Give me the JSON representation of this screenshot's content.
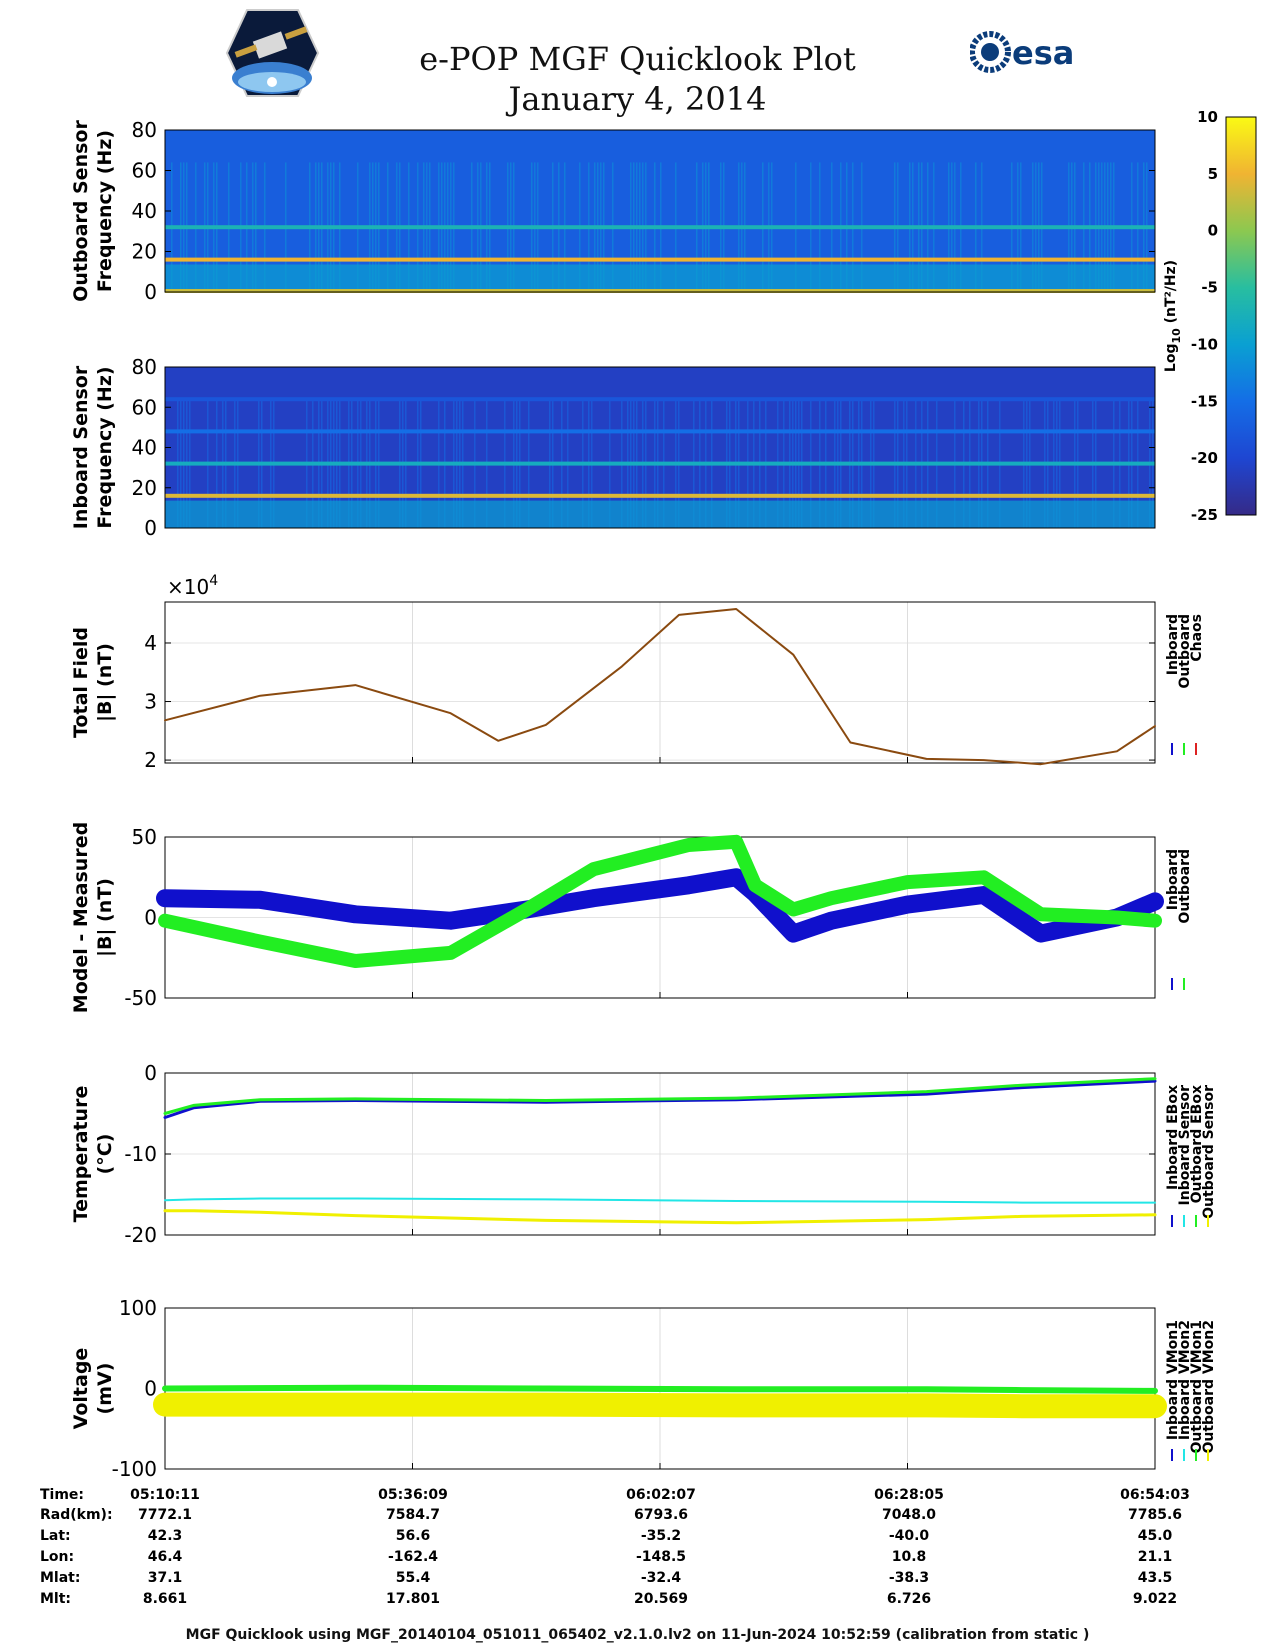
{
  "title": "e-POP MGF Quicklook Plot",
  "subtitle": "January 4, 2014",
  "footer": "MGF Quicklook using MGF_20140104_051011_065402_v2.1.0.lv2 on 11-Jun-2024 10:52:59 (calibration from static )",
  "logos": {
    "left": "e-POP CASSIOPE mission patch",
    "right_text": "esa"
  },
  "colors": {
    "inboard": "#1010cc",
    "outboard": "#22ee22",
    "chaos": "#dd2222",
    "inboard_sensor": "#22e6e6",
    "outboard_sensor": "#f0f000",
    "field_line": "#8a4a10"
  },
  "colorbar": {
    "label": "Log10 (nT²/Hz)",
    "label_main": "Log",
    "label_sub": "10",
    "label_rest": " (nT²/Hz)",
    "ticks": [
      10,
      5,
      0,
      -5,
      -10,
      -15,
      -20,
      -25
    ],
    "range": [
      -25,
      10
    ]
  },
  "chart_data": [
    {
      "type": "heatmap",
      "ylabel_line1": "Outboard Sensor",
      "ylabel_line2": "Frequency (Hz)",
      "ylim": [
        0,
        80
      ],
      "yticks": [
        0,
        20,
        40,
        60,
        80
      ],
      "bands": [
        {
          "freq_hz": 16,
          "log_power": 5
        },
        {
          "freq_hz": 32,
          "log_power": -7
        },
        {
          "freq_hz": 0.5,
          "log_power": 3
        }
      ],
      "background_log_power": -17
    },
    {
      "type": "heatmap",
      "ylabel_line1": "Inboard Sensor",
      "ylabel_line2": "Frequency (Hz)",
      "ylim": [
        0,
        80
      ],
      "yticks": [
        0,
        20,
        40,
        60,
        80
      ],
      "bands": [
        {
          "freq_hz": 16,
          "log_power": 4
        },
        {
          "freq_hz": 32,
          "log_power": -8
        },
        {
          "freq_hz": 48,
          "log_power": -15
        },
        {
          "freq_hz": 64,
          "log_power": -18
        }
      ],
      "background_log_power": -21
    },
    {
      "type": "line",
      "ylabel_line1": "Total Field",
      "ylabel_line2": "|B| (nT)",
      "exponent_label": "×10",
      "exponent_power": "4",
      "ylim": [
        1.95,
        4.7
      ],
      "yticks": [
        2,
        3,
        4
      ],
      "legend": [
        "Inboard",
        "Outboard",
        "Chaos"
      ],
      "x_minutes": [
        0,
        10,
        20,
        30,
        35,
        40,
        48,
        54,
        60,
        66,
        72,
        80,
        86,
        92,
        100,
        104
      ],
      "series": [
        {
          "name": "Chaos",
          "values": [
            2.68,
            3.1,
            3.28,
            2.8,
            2.33,
            2.6,
            3.6,
            4.48,
            4.58,
            3.8,
            2.3,
            2.02,
            2.0,
            1.93,
            2.15,
            2.58
          ]
        }
      ]
    },
    {
      "type": "line",
      "ylabel_line1": "Model - Measured",
      "ylabel_line2": "|B| (nT)",
      "ylim": [
        -50,
        50
      ],
      "yticks": [
        -50,
        0,
        50
      ],
      "legend": [
        "Inboard",
        "Outboard"
      ],
      "x_minutes": [
        0,
        10,
        20,
        30,
        38,
        45,
        55,
        60,
        62,
        66,
        70,
        78,
        86,
        92,
        100,
        104
      ],
      "series": [
        {
          "name": "Inboard",
          "values": [
            12,
            11,
            2,
            -2,
            5,
            12,
            20,
            25,
            15,
            -10,
            -2,
            8,
            14,
            -10,
            0,
            10
          ]
        },
        {
          "name": "Outboard",
          "values": [
            -2,
            -15,
            -27,
            -22,
            5,
            30,
            45,
            47,
            20,
            5,
            12,
            22,
            25,
            2,
            0,
            -2
          ]
        }
      ]
    },
    {
      "type": "line",
      "ylabel_line1": "Temperature",
      "ylabel_line2": "(°C)",
      "ylim": [
        -20,
        0
      ],
      "yticks": [
        -20,
        -10,
        0
      ],
      "legend": [
        "Inboard EBox",
        "Inboard Sensor",
        "Outboard EBox",
        "Outboard Sensor"
      ],
      "x_minutes": [
        0,
        3,
        10,
        20,
        40,
        60,
        80,
        90,
        104
      ],
      "series": [
        {
          "name": "Inboard EBox",
          "values": [
            -5.5,
            -4.3,
            -3.5,
            -3.4,
            -3.6,
            -3.3,
            -2.6,
            -1.8,
            -1.0
          ]
        },
        {
          "name": "Inboard Sensor",
          "values": [
            -15.7,
            -15.6,
            -15.5,
            -15.5,
            -15.6,
            -15.8,
            -15.9,
            -16.0,
            -16.0
          ]
        },
        {
          "name": "Outboard EBox",
          "values": [
            -5.0,
            -4.0,
            -3.3,
            -3.2,
            -3.4,
            -3.1,
            -2.3,
            -1.5,
            -0.7
          ]
        },
        {
          "name": "Outboard Sensor",
          "values": [
            -17.0,
            -17.0,
            -17.2,
            -17.6,
            -18.2,
            -18.5,
            -18.1,
            -17.7,
            -17.5
          ]
        }
      ]
    },
    {
      "type": "line",
      "ylabel_line1": "Voltage",
      "ylabel_line2": "(mV)",
      "ylim": [
        -100,
        100
      ],
      "yticks": [
        -100,
        0,
        100
      ],
      "legend": [
        "Inboard VMon1",
        "Inboard VMon2",
        "Outboard VMon1",
        "Outboard VMon2"
      ],
      "x_minutes": [
        0,
        20,
        40,
        60,
        80,
        90,
        104
      ],
      "series": [
        {
          "name": "Inboard VMon1",
          "values": [
            -28,
            -28,
            -29,
            -30,
            -30,
            -33,
            -33
          ]
        },
        {
          "name": "Inboard VMon2",
          "values": [
            -10,
            -12,
            -14,
            -14,
            -15,
            -15,
            -15
          ]
        },
        {
          "name": "Outboard VMon1",
          "values": [
            0,
            1,
            0,
            -1,
            -1,
            -2,
            -3
          ]
        },
        {
          "name": "Outboard VMon2",
          "values": [
            -20,
            -20,
            -20,
            -21,
            -21,
            -22,
            -22
          ]
        }
      ]
    }
  ],
  "ephemeris": {
    "labels": [
      "Time:",
      "Rad(km):",
      "Lat:",
      "Lon:",
      "Mlat:",
      "Mlt:"
    ],
    "columns": [
      [
        "05:10:11",
        "7772.1",
        "42.3",
        "46.4",
        "37.1",
        "8.661"
      ],
      [
        "05:36:09",
        "7584.7",
        "56.6",
        "-162.4",
        "55.4",
        "17.801"
      ],
      [
        "06:02:07",
        "6793.6",
        "-35.2",
        "-148.5",
        "-32.4",
        "20.569"
      ],
      [
        "06:28:05",
        "7048.0",
        "-40.0",
        "10.8",
        "-38.3",
        "6.726"
      ],
      [
        "06:54:03",
        "7785.6",
        "45.0",
        "21.1",
        "43.5",
        "9.022"
      ]
    ]
  }
}
